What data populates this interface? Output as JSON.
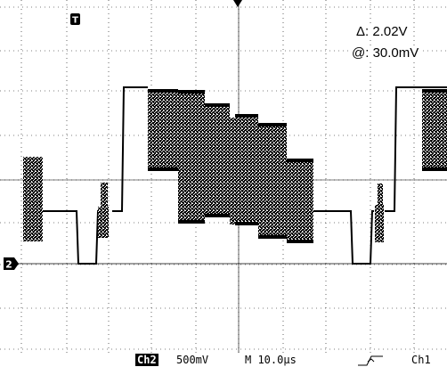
{
  "measurements": {
    "delta_symbol": "Δ:",
    "delta_value": "2.02V",
    "at_symbol": "@:",
    "at_value": "30.0mV"
  },
  "markers": {
    "trigger_marker": "T",
    "channel_marker": "2"
  },
  "status_bar": {
    "channel": "Ch2",
    "volts_per_div": "500mV",
    "time_per_div": "M 10.0µs",
    "trigger_source": "Ch1"
  },
  "colors": {
    "background": "#ffffff",
    "trace": "#000000",
    "graticule": "#000000"
  },
  "icons": {
    "trigger_slope": "rising-edge-icon",
    "trigger_position": "trigger-position-arrow-icon"
  }
}
